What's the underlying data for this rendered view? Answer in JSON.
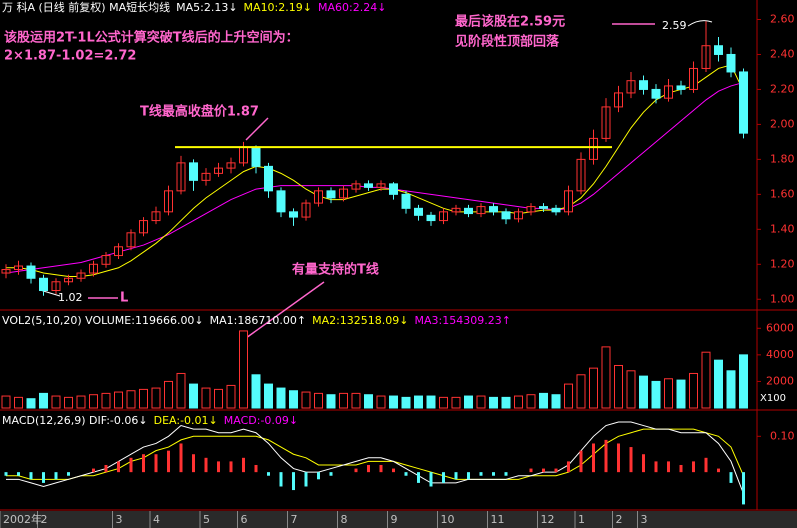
{
  "chart_data": {
    "type": "candlestick",
    "header": {
      "price": [
        "万 科A (日线 前复权) MA短长均线",
        "MA5:2.13↓",
        "MA10:2.19↓",
        "MA60:2.24↓"
      ],
      "price_colors": [
        "#ffffff",
        "#ffffff",
        "#ffff00",
        "#ff00ff"
      ],
      "volume": [
        "VOL2(5,10,20) VOLUME:119666.00↓",
        "MA1:186710.00↑",
        "MA2:132518.09↓",
        "MA3:154309.23↑"
      ],
      "volume_colors": [
        "#ffffff",
        "#ffffff",
        "#ffff00",
        "#ff00ff"
      ],
      "macd": [
        "MACD(12,26,9) DIF:-0.06↓",
        "DEA:-0.01↓",
        "MACD:-0.09↓"
      ],
      "macd_colors": [
        "#ffffff",
        "#ffff00",
        "#ff00ff"
      ]
    },
    "annotations": [
      "该股运用2T-1L公式计算突破T线后的上升空间为：",
      "2×1.87-1.02=2.72",
      "T线最高收盘价1.87",
      "有量支持的T线",
      "最后该股在2.59元",
      "见阶段性顶部回落",
      "2.59",
      "1.02",
      "L"
    ],
    "t_line": 1.87,
    "categories": [
      "2002年",
      null,
      null,
      "2",
      null,
      null,
      null,
      null,
      null,
      "3",
      null,
      null,
      "4",
      null,
      null,
      null,
      "5",
      null,
      null,
      "6",
      null,
      null,
      null,
      "7",
      null,
      null,
      null,
      "8",
      null,
      null,
      null,
      "9",
      null,
      null,
      null,
      "10",
      null,
      null,
      null,
      "11",
      null,
      null,
      null,
      "12",
      null,
      null,
      "1",
      null,
      null,
      "2",
      null,
      "3",
      null,
      null,
      null,
      null,
      null,
      null,
      null,
      null
    ],
    "open": [
      1.15,
      1.17,
      1.19,
      1.12,
      1.05,
      1.1,
      1.12,
      1.15,
      1.2,
      1.25,
      1.3,
      1.38,
      1.45,
      1.5,
      1.62,
      1.78,
      1.68,
      1.72,
      1.75,
      1.78,
      1.87,
      1.76,
      1.62,
      1.5,
      1.47,
      1.55,
      1.62,
      1.58,
      1.63,
      1.66,
      1.64,
      1.66,
      1.6,
      1.52,
      1.48,
      1.45,
      1.5,
      1.52,
      1.49,
      1.53,
      1.5,
      1.46,
      1.5,
      1.53,
      1.52,
      1.5,
      1.62,
      1.8,
      1.92,
      2.1,
      2.18,
      2.25,
      2.2,
      2.15,
      2.22,
      2.2,
      2.32,
      2.45,
      2.4,
      2.3
    ],
    "high": [
      1.2,
      1.22,
      1.21,
      1.14,
      1.12,
      1.14,
      1.17,
      1.22,
      1.27,
      1.32,
      1.4,
      1.47,
      1.53,
      1.65,
      1.82,
      1.8,
      1.75,
      1.78,
      1.81,
      1.9,
      1.88,
      1.78,
      1.64,
      1.52,
      1.57,
      1.64,
      1.64,
      1.65,
      1.68,
      1.68,
      1.68,
      1.67,
      1.62,
      1.54,
      1.5,
      1.52,
      1.54,
      1.54,
      1.55,
      1.55,
      1.52,
      1.52,
      1.55,
      1.55,
      1.54,
      1.65,
      1.84,
      1.97,
      2.15,
      2.22,
      2.3,
      2.28,
      2.23,
      2.26,
      2.25,
      2.36,
      2.59,
      2.5,
      2.44,
      2.32
    ],
    "low": [
      1.12,
      1.14,
      1.09,
      1.02,
      1.03,
      1.08,
      1.1,
      1.13,
      1.18,
      1.23,
      1.28,
      1.36,
      1.43,
      1.48,
      1.6,
      1.62,
      1.65,
      1.7,
      1.72,
      1.76,
      1.72,
      1.58,
      1.47,
      1.42,
      1.45,
      1.53,
      1.55,
      1.56,
      1.61,
      1.62,
      1.62,
      1.57,
      1.49,
      1.45,
      1.42,
      1.43,
      1.48,
      1.47,
      1.47,
      1.48,
      1.43,
      1.44,
      1.48,
      1.5,
      1.48,
      1.48,
      1.6,
      1.77,
      1.9,
      2.07,
      2.15,
      2.17,
      2.12,
      2.13,
      2.17,
      2.18,
      2.3,
      2.36,
      2.27,
      1.92
    ],
    "close": [
      1.17,
      1.19,
      1.12,
      1.05,
      1.1,
      1.12,
      1.15,
      1.2,
      1.25,
      1.3,
      1.38,
      1.45,
      1.5,
      1.62,
      1.78,
      1.68,
      1.72,
      1.75,
      1.78,
      1.87,
      1.76,
      1.62,
      1.5,
      1.47,
      1.55,
      1.62,
      1.58,
      1.63,
      1.66,
      1.64,
      1.66,
      1.6,
      1.52,
      1.48,
      1.45,
      1.5,
      1.52,
      1.49,
      1.53,
      1.5,
      1.46,
      1.5,
      1.53,
      1.52,
      1.5,
      1.62,
      1.8,
      1.92,
      2.1,
      2.18,
      2.25,
      2.2,
      2.15,
      2.22,
      2.2,
      2.32,
      2.45,
      2.4,
      2.3,
      1.95
    ],
    "ma_series": [
      {
        "name": "MA10",
        "color": "#ffff00",
        "values": [
          1.18,
          1.18,
          1.17,
          1.15,
          1.14,
          1.13,
          1.13,
          1.14,
          1.16,
          1.18,
          1.22,
          1.27,
          1.32,
          1.38,
          1.45,
          1.52,
          1.58,
          1.63,
          1.68,
          1.73,
          1.76,
          1.75,
          1.72,
          1.68,
          1.63,
          1.59,
          1.57,
          1.57,
          1.59,
          1.61,
          1.63,
          1.63,
          1.61,
          1.58,
          1.55,
          1.52,
          1.5,
          1.5,
          1.5,
          1.5,
          1.5,
          1.49,
          1.5,
          1.51,
          1.51,
          1.53,
          1.58,
          1.66,
          1.76,
          1.87,
          1.98,
          2.07,
          2.14,
          2.18,
          2.2,
          2.22,
          2.27,
          2.32,
          2.34,
          2.19
        ]
      },
      {
        "name": "MA60",
        "color": "#ff00ff",
        "values": [
          1.15,
          1.16,
          1.17,
          1.18,
          1.19,
          1.2,
          1.21,
          1.23,
          1.25,
          1.27,
          1.29,
          1.31,
          1.34,
          1.37,
          1.41,
          1.45,
          1.49,
          1.53,
          1.57,
          1.6,
          1.63,
          1.64,
          1.65,
          1.65,
          1.65,
          1.65,
          1.65,
          1.65,
          1.65,
          1.64,
          1.64,
          1.63,
          1.62,
          1.61,
          1.6,
          1.59,
          1.58,
          1.57,
          1.56,
          1.55,
          1.54,
          1.53,
          1.52,
          1.52,
          1.51,
          1.52,
          1.55,
          1.6,
          1.66,
          1.72,
          1.78,
          1.84,
          1.9,
          1.96,
          2.02,
          2.08,
          2.14,
          2.19,
          2.22,
          2.24
        ]
      }
    ],
    "ylim": [
      0.95,
      2.66
    ],
    "yticks": [
      {
        "value": 1.0,
        "label": "1.00"
      },
      {
        "value": 1.2,
        "label": "1.20"
      },
      {
        "value": 1.4,
        "label": "1.40"
      },
      {
        "value": 1.6,
        "label": "1.60"
      },
      {
        "value": 1.8,
        "label": "1.80"
      },
      {
        "value": 2.0,
        "label": "2.00"
      },
      {
        "value": 2.2,
        "label": "2.20"
      },
      {
        "value": 2.4,
        "label": "2.40"
      },
      {
        "value": 2.6,
        "label": "2.60"
      }
    ],
    "volume": [
      900,
      800,
      700,
      1100,
      900,
      800,
      900,
      1000,
      1100,
      1200,
      1300,
      1400,
      1500,
      2000,
      2600,
      1800,
      1500,
      1400,
      1700,
      5800,
      2500,
      1800,
      1500,
      1300,
      1200,
      1100,
      1000,
      1100,
      1100,
      1000,
      900,
      900,
      800,
      900,
      900,
      800,
      800,
      900,
      900,
      800,
      800,
      900,
      1000,
      1100,
      1000,
      1800,
      2500,
      3000,
      4600,
      3200,
      2800,
      2400,
      2000,
      2200,
      2100,
      2600,
      4200,
      3600,
      2800,
      4000
    ],
    "vol_ylim": [
      0,
      7000
    ],
    "vol_yticks": [
      2000,
      4000,
      6000
    ],
    "vol_unit": "X100",
    "macd": [
      -0.01,
      -0.01,
      -0.02,
      -0.03,
      -0.02,
      -0.01,
      0.0,
      0.01,
      0.02,
      0.03,
      0.04,
      0.05,
      0.05,
      0.06,
      0.08,
      0.05,
      0.04,
      0.03,
      0.03,
      0.04,
      0.02,
      -0.01,
      -0.04,
      -0.05,
      -0.04,
      -0.02,
      -0.01,
      0.0,
      0.01,
      0.02,
      0.02,
      0.01,
      -0.01,
      -0.03,
      -0.04,
      -0.03,
      -0.02,
      -0.02,
      -0.01,
      -0.01,
      -0.01,
      0.0,
      0.01,
      0.01,
      0.01,
      0.03,
      0.06,
      0.08,
      0.09,
      0.08,
      0.07,
      0.05,
      0.03,
      0.03,
      0.02,
      0.03,
      0.04,
      0.01,
      -0.03,
      -0.09
    ],
    "dif": [
      -0.02,
      -0.02,
      -0.03,
      -0.04,
      -0.03,
      -0.02,
      -0.01,
      0.0,
      0.01,
      0.03,
      0.05,
      0.07,
      0.08,
      0.1,
      0.13,
      0.12,
      0.12,
      0.11,
      0.11,
      0.12,
      0.11,
      0.08,
      0.04,
      0.01,
      0.0,
      0.0,
      0.01,
      0.02,
      0.03,
      0.04,
      0.04,
      0.03,
      0.01,
      -0.01,
      -0.03,
      -0.03,
      -0.03,
      -0.02,
      -0.02,
      -0.02,
      -0.02,
      -0.01,
      -0.01,
      0.0,
      0.0,
      0.02,
      0.06,
      0.1,
      0.13,
      0.14,
      0.14,
      0.13,
      0.12,
      0.12,
      0.11,
      0.11,
      0.11,
      0.08,
      0.03,
      -0.06
    ],
    "dea": [
      -0.01,
      -0.01,
      -0.02,
      -0.02,
      -0.02,
      -0.02,
      -0.01,
      -0.01,
      0.0,
      0.01,
      0.03,
      0.04,
      0.06,
      0.07,
      0.09,
      0.1,
      0.1,
      0.1,
      0.1,
      0.1,
      0.1,
      0.09,
      0.07,
      0.05,
      0.04,
      0.02,
      0.02,
      0.02,
      0.02,
      0.03,
      0.03,
      0.03,
      0.02,
      0.01,
      0.0,
      -0.01,
      -0.02,
      -0.02,
      -0.02,
      -0.02,
      -0.02,
      -0.02,
      -0.01,
      -0.01,
      -0.01,
      0.0,
      0.02,
      0.05,
      0.08,
      0.1,
      0.11,
      0.12,
      0.12,
      0.12,
      0.12,
      0.12,
      0.11,
      0.1,
      0.07,
      -0.01
    ],
    "macd_ylim": [
      -0.1,
      0.165
    ],
    "macd_yticks": [
      {
        "value": 0.1,
        "label": "0.10"
      }
    ]
  }
}
